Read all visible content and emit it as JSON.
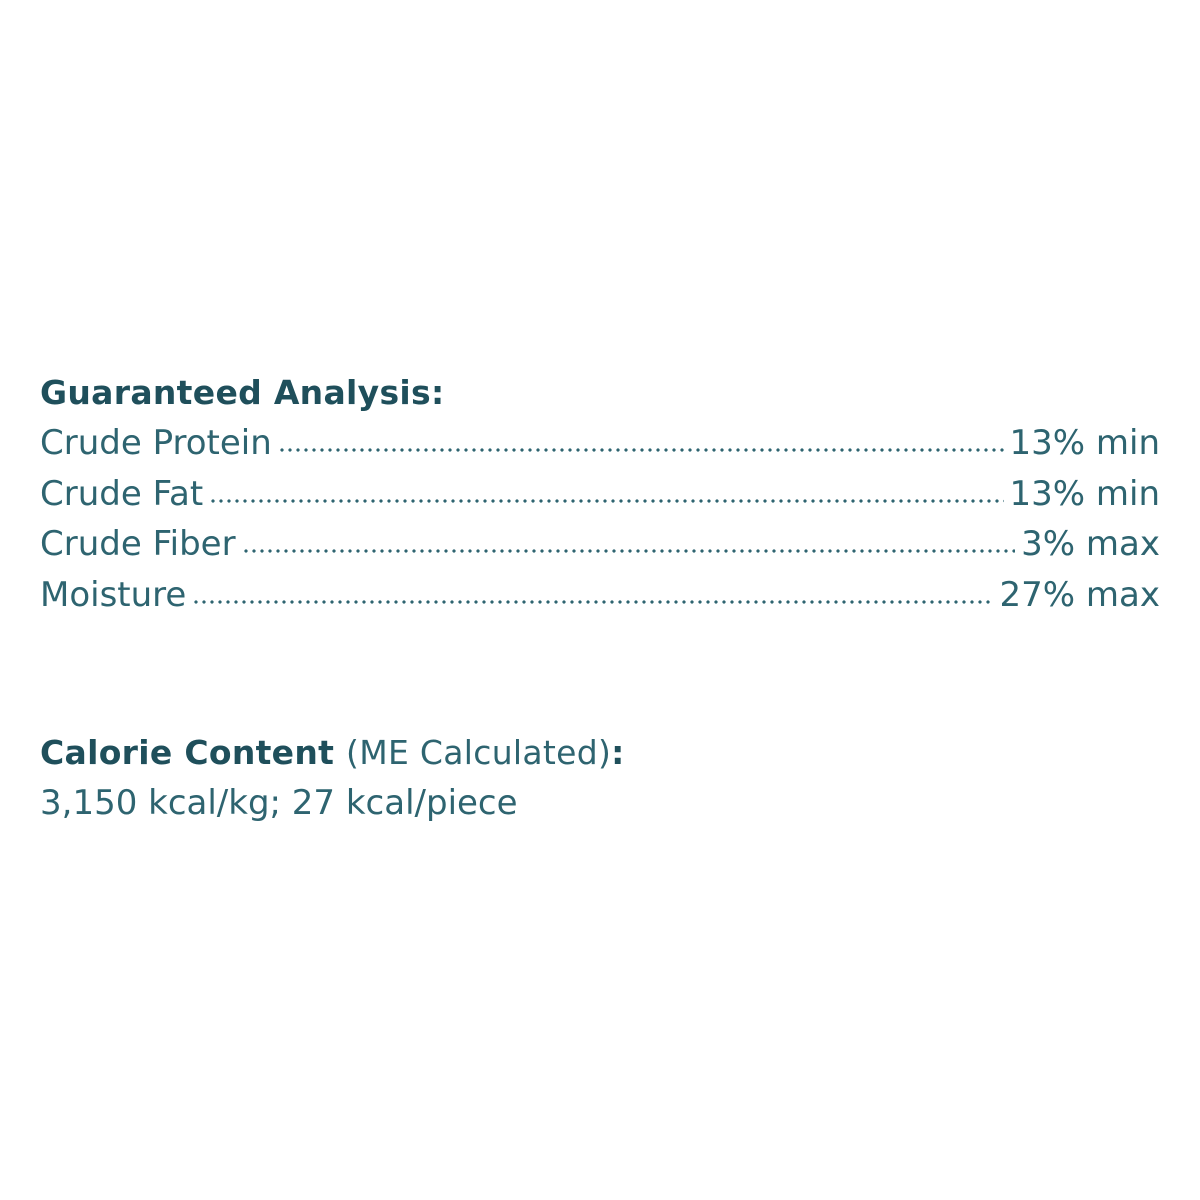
{
  "guaranteed_analysis": {
    "title": "Guaranteed Analysis:",
    "rows": [
      {
        "label": "Crude Protein",
        "value": "13% min"
      },
      {
        "label": "Crude Fat",
        "value": "13% min"
      },
      {
        "label": "Crude Fiber",
        "value": "3% max"
      },
      {
        "label": "Moisture",
        "value": "27% max"
      }
    ]
  },
  "calorie_content": {
    "title": "Calorie Content",
    "qualifier": "(ME Calculated)",
    "colon": ":",
    "value": "3,150 kcal/kg; 27 kcal/piece"
  },
  "colors": {
    "heading": "#1f4f5b",
    "text": "#2e6470"
  }
}
